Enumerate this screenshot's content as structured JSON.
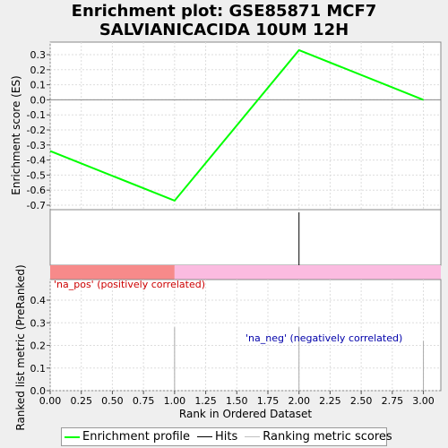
{
  "chart_data": {
    "type": "line",
    "title_lines": [
      "Enrichment plot: GSE85871 MCF7",
      "SALVIANICACIDA 10UM 12H"
    ],
    "es_panel": {
      "ylabel": "Enrichment score (ES)",
      "ylim": [
        -0.7,
        0.35
      ],
      "yticks": [
        "0.3",
        "0.2",
        "0.1",
        "0.0",
        "-0.1",
        "-0.2",
        "-0.3",
        "-0.4",
        "-0.5",
        "-0.6",
        "-0.7"
      ],
      "series": [
        {
          "name": "Enrichment profile",
          "color": "#00ff00",
          "x": [
            0,
            1,
            2,
            3
          ],
          "y": [
            -0.34,
            -0.67,
            0.33,
            0.0
          ]
        }
      ]
    },
    "hits": {
      "x": [
        2
      ],
      "color": "#000000"
    },
    "bar": {
      "pos_end": 1.0,
      "pos_color": "#f78a8a",
      "neg_color": "#fbbbe0",
      "pos_label": "'na_pos' (positively correlated)",
      "neg_label": "'na_neg' (negatively correlated)",
      "pos_label_color": "#cc0000",
      "neg_label_color": "#0000aa"
    },
    "metric_panel": {
      "ylabel": "Ranked list metric (PreRanked)",
      "ylim": [
        0.0,
        0.48
      ],
      "yticks": [
        "0.4",
        "0.3",
        "0.2",
        "0.1",
        "0.0"
      ],
      "bars": {
        "x": [
          1,
          2,
          3
        ],
        "values": [
          0.28,
          0.28,
          0.22
        ],
        "color": "#aaaaaa"
      }
    },
    "xaxis": {
      "label": "Rank in Ordered Dataset",
      "xlim": [
        0,
        3.14
      ],
      "ticks": [
        "0.00",
        "0.25",
        "0.50",
        "0.75",
        "1.00",
        "1.25",
        "1.50",
        "1.75",
        "2.00",
        "2.25",
        "2.50",
        "2.75",
        "3.00"
      ]
    },
    "legend": [
      {
        "label": "Enrichment profile",
        "color": "#00ff00"
      },
      {
        "label": "Hits",
        "color": "#000000"
      },
      {
        "label": "Ranking metric scores",
        "color": "#c0c0c0"
      }
    ]
  }
}
